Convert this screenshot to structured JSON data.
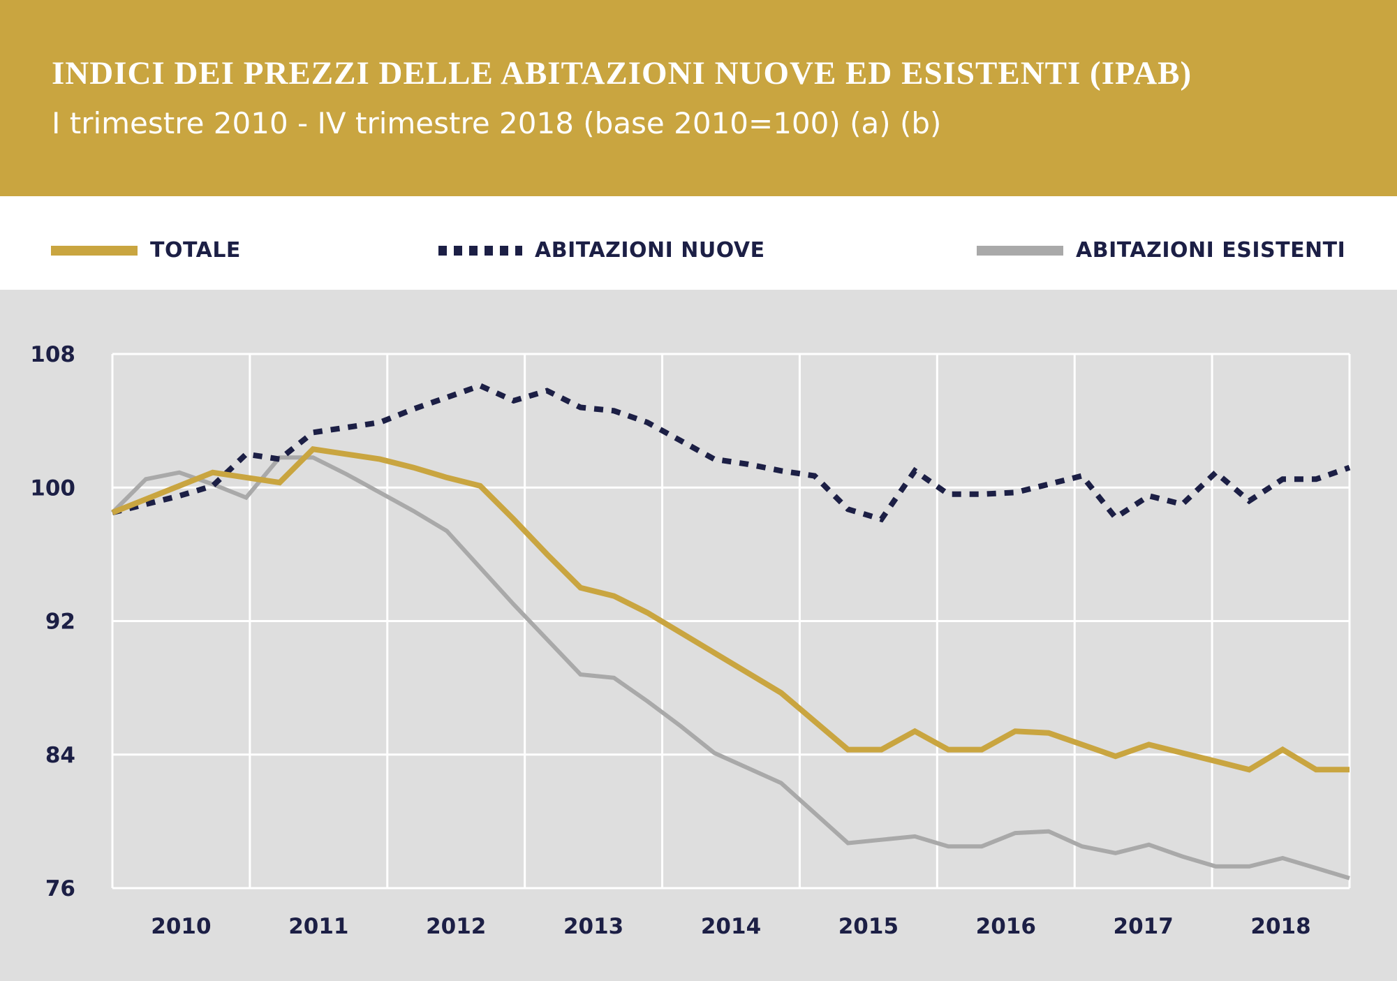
{
  "header": {
    "title": "INDICI DEI PREZZI DELLE ABITAZIONI NUOVE ED ESISTENTI (IPAB)",
    "subtitle": "I trimestre 2010 - IV trimestre 2018 (base 2010=100) (a) (b)"
  },
  "colors": {
    "header_bg": "#c9a540",
    "totale": "#c9a540",
    "nuove": "#1c1f45",
    "esistenti": "#a9a9a9",
    "plot_bg": "#dedede",
    "text": "#1c1f45"
  },
  "chart_data": {
    "type": "line",
    "title": "INDICI DEI PREZZI DELLE ABITAZIONI NUOVE ED ESISTENTI (IPAB)",
    "subtitle": "I trimestre 2010 - IV trimestre 2018 (base 2010=100) (a) (b)",
    "xlabel": "",
    "ylabel": "",
    "ylim": [
      76,
      108
    ],
    "yticks": [
      "76",
      "84",
      "92",
      "100",
      "108"
    ],
    "ytick_values": [
      76,
      84,
      92,
      100,
      108
    ],
    "categories": [
      "2010",
      "2011",
      "2012",
      "2013",
      "2014",
      "2015",
      "2016",
      "2017",
      "2018"
    ],
    "x_unit": "quarter",
    "quarters_per_year": 4,
    "grid": true,
    "legend_position": "top",
    "series": [
      {
        "name": "TOTALE",
        "style": "solid",
        "values": [
          98.5,
          99.3,
          100.1,
          100.9,
          100.6,
          100.3,
          102.3,
          102.0,
          101.7,
          101.2,
          100.6,
          100.1,
          98.1,
          96.0,
          94.0,
          93.5,
          92.5,
          91.3,
          90.1,
          88.9,
          87.7,
          86.0,
          84.3,
          84.3,
          85.4,
          84.3,
          84.3,
          85.4,
          85.3,
          84.6,
          83.9,
          84.6,
          84.1,
          83.6,
          83.1,
          84.3,
          83.1,
          83.1
        ]
      },
      {
        "name": "ABITAZIONI NUOVE",
        "style": "dashed",
        "values": [
          98.5,
          99.0,
          99.5,
          100.1,
          102.0,
          101.7,
          103.3,
          103.6,
          103.9,
          104.7,
          105.4,
          106.1,
          105.2,
          105.8,
          104.8,
          104.6,
          103.9,
          102.8,
          101.7,
          101.4,
          101.0,
          100.7,
          98.7,
          98.1,
          101.0,
          99.6,
          99.6,
          99.7,
          100.2,
          100.7,
          98.2,
          99.5,
          99.0,
          100.9,
          99.2,
          100.5,
          100.5,
          101.2
        ]
      },
      {
        "name": "ABITAZIONI ESISTENTI",
        "style": "solid-thin",
        "values": [
          98.5,
          100.5,
          100.9,
          100.2,
          99.4,
          101.8,
          101.8,
          100.8,
          99.7,
          98.6,
          97.4,
          95.2,
          93.0,
          90.9,
          88.8,
          88.6,
          87.2,
          85.7,
          84.1,
          83.2,
          82.3,
          80.5,
          78.7,
          78.9,
          79.1,
          78.5,
          78.5,
          79.3,
          79.4,
          78.5,
          78.1,
          78.6,
          77.9,
          77.3,
          77.3,
          77.8,
          77.2,
          76.6
        ]
      }
    ]
  },
  "legend": [
    {
      "label": "TOTALE"
    },
    {
      "label": "ABITAZIONI NUOVE"
    },
    {
      "label": "ABITAZIONI ESISTENTI"
    }
  ]
}
